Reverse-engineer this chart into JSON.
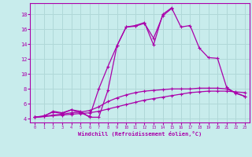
{
  "title": "",
  "xlabel": "Windchill (Refroidissement éolien,°C)",
  "bg_color": "#c8ecec",
  "grid_color": "#b0d8d8",
  "line_color": "#aa00aa",
  "spine_color": "#aa00aa",
  "xlim": [
    -0.5,
    23.5
  ],
  "ylim": [
    3.5,
    19.5
  ],
  "xticks": [
    0,
    1,
    2,
    3,
    4,
    5,
    6,
    7,
    8,
    9,
    10,
    11,
    12,
    13,
    14,
    15,
    16,
    17,
    18,
    19,
    20,
    21,
    22,
    23
  ],
  "yticks": [
    4,
    6,
    8,
    10,
    12,
    14,
    16,
    18
  ],
  "line1_x": [
    0,
    1,
    2,
    3,
    4,
    5,
    6,
    7,
    8,
    9,
    10,
    11,
    12,
    13,
    14,
    15,
    16,
    17,
    18,
    19,
    20,
    21,
    22,
    23
  ],
  "line1_y": [
    4.2,
    4.3,
    4.4,
    4.5,
    4.6,
    4.7,
    4.8,
    5.0,
    5.3,
    5.6,
    5.9,
    6.2,
    6.5,
    6.7,
    6.9,
    7.1,
    7.3,
    7.5,
    7.6,
    7.7,
    7.7,
    7.7,
    7.6,
    7.5
  ],
  "line2_x": [
    0,
    1,
    2,
    3,
    4,
    5,
    6,
    7,
    8,
    9,
    10,
    11,
    12,
    13,
    14,
    15,
    16,
    17,
    18,
    19,
    20,
    21,
    22,
    23
  ],
  "line2_y": [
    4.2,
    4.3,
    4.5,
    4.6,
    4.8,
    4.9,
    5.1,
    5.6,
    6.3,
    6.8,
    7.2,
    7.5,
    7.7,
    7.8,
    7.9,
    8.0,
    8.0,
    8.0,
    8.1,
    8.1,
    8.1,
    8.0,
    7.5,
    7.0
  ],
  "line3_x": [
    0,
    1,
    2,
    3,
    4,
    5,
    6,
    7,
    8,
    9,
    10,
    11,
    12,
    13,
    14,
    15,
    16,
    17,
    18,
    19,
    20,
    21,
    22,
    23
  ],
  "line3_y": [
    4.2,
    4.4,
    4.9,
    4.7,
    5.2,
    5.0,
    4.2,
    4.2,
    7.8,
    13.8,
    16.3,
    16.4,
    16.8,
    14.8,
    17.8,
    18.8,
    16.3,
    16.5,
    13.5,
    12.2,
    12.1,
    8.2,
    7.4,
    7.0
  ],
  "line4_x": [
    0,
    1,
    2,
    3,
    4,
    5,
    6,
    7,
    8,
    9,
    10,
    11,
    12,
    13,
    14,
    15
  ],
  "line4_y": [
    4.2,
    4.3,
    5.0,
    4.8,
    5.2,
    4.8,
    4.3,
    8.0,
    11.0,
    13.8,
    16.3,
    16.5,
    16.9,
    13.9,
    18.0,
    18.9
  ]
}
